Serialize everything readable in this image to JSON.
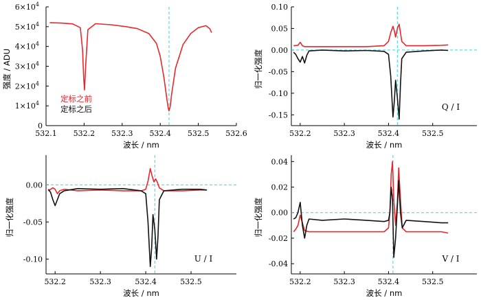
{
  "colors": {
    "before": "#e8262b",
    "after": "#111111",
    "guide": "#33d6e6"
  },
  "chart_data": [
    {
      "type": "line",
      "xlabel": "波长 / nm",
      "ylabel": "强度 / ADU",
      "xlim": [
        532.1,
        532.6
      ],
      "ylim": [
        0,
        60000
      ],
      "xticks": [
        {
          "v": 532.1,
          "label": "532.1"
        },
        {
          "v": 532.2,
          "label": "532.2"
        },
        {
          "v": 532.3,
          "label": "532.3"
        },
        {
          "v": 532.4,
          "label": "532.4"
        },
        {
          "v": 532.5,
          "label": "532.5"
        },
        {
          "v": 532.6,
          "label": "532.6"
        }
      ],
      "yticks": [
        {
          "v": 0,
          "m": "0",
          "e": ""
        },
        {
          "v": 10000,
          "m": "1×10",
          "e": "4"
        },
        {
          "v": 20000,
          "m": "2×10",
          "e": "4"
        },
        {
          "v": 30000,
          "m": "3×10",
          "e": "4"
        },
        {
          "v": 40000,
          "m": "4×10",
          "e": "4"
        },
        {
          "v": 50000,
          "m": "5×10",
          "e": "4"
        },
        {
          "v": 60000,
          "m": "6×10",
          "e": "4"
        }
      ],
      "legend": [
        "定标之前",
        "定标之后"
      ],
      "vline": 532.423,
      "series": [
        {
          "x": [
            532.11,
            532.14,
            532.17,
            532.19,
            532.196,
            532.199,
            532.201,
            532.204,
            532.21,
            532.23,
            532.27,
            532.31,
            532.34,
            532.37,
            532.39,
            532.4,
            532.41,
            532.417,
            532.421,
            532.423,
            532.426,
            532.43,
            532.44,
            532.46,
            532.48,
            532.5,
            532.52,
            532.53,
            532.535
          ],
          "y": [
            52000,
            51800,
            51400,
            49500,
            38000,
            24000,
            18000,
            30000,
            48500,
            51500,
            51000,
            50000,
            49000,
            46500,
            41500,
            35000,
            24000,
            14000,
            9000,
            7500,
            9500,
            16000,
            29000,
            41000,
            46500,
            49500,
            50500,
            49000,
            47000
          ]
        }
      ]
    },
    {
      "type": "line",
      "xlabel": "波长 / nm",
      "ylabel": "归一化强度",
      "annotation": "Q / I",
      "xlim": [
        532.18,
        532.6
      ],
      "ylim": [
        -0.175,
        0.1
      ],
      "xticks": [
        {
          "v": 532.2,
          "label": "532.2"
        },
        {
          "v": 532.3,
          "label": "532.3"
        },
        {
          "v": 532.4,
          "label": "532.4"
        },
        {
          "v": 532.5,
          "label": "532.5"
        }
      ],
      "yticks": [
        {
          "v": 0.1,
          "label": "0.10"
        },
        {
          "v": 0.05,
          "label": "0.05"
        },
        {
          "v": 0.0,
          "label": "0.00"
        },
        {
          "v": -0.05,
          "label": "-0.05"
        },
        {
          "v": -0.1,
          "label": "-0.10"
        },
        {
          "v": -0.15,
          "label": "-0.15"
        }
      ],
      "hline": 0,
      "vline": 532.42,
      "series": [
        {
          "x": [
            532.185,
            532.195,
            532.2,
            532.205,
            532.21,
            532.22,
            532.25,
            532.3,
            532.35,
            532.39,
            532.4,
            532.405,
            532.41,
            532.413,
            532.416,
            532.42,
            532.424,
            532.427,
            532.43,
            532.44,
            532.48,
            532.52,
            532.535
          ],
          "y": [
            0.01,
            0.011,
            0.018,
            0.01,
            0.008,
            0.008,
            0.008,
            0.008,
            0.008,
            0.01,
            0.02,
            0.04,
            0.055,
            0.045,
            0.03,
            0.05,
            0.06,
            0.04,
            0.02,
            0.01,
            0.01,
            0.011,
            0.012
          ]
        },
        {
          "x": [
            532.185,
            532.19,
            532.195,
            532.2,
            532.205,
            532.21,
            532.215,
            532.22,
            532.25,
            532.3,
            532.35,
            532.39,
            532.4,
            532.405,
            532.41,
            532.413,
            532.416,
            532.42,
            532.424,
            532.427,
            532.43,
            532.44,
            532.48,
            532.52,
            532.535
          ],
          "y": [
            -0.005,
            -0.01,
            -0.02,
            -0.028,
            -0.015,
            -0.03,
            -0.012,
            -0.002,
            0.0,
            -0.002,
            -0.001,
            -0.003,
            -0.01,
            -0.06,
            -0.155,
            -0.12,
            -0.07,
            -0.11,
            -0.16,
            -0.08,
            -0.02,
            -0.005,
            -0.002,
            0.0,
            -0.001
          ]
        }
      ]
    },
    {
      "type": "line",
      "xlabel": "波长 / nm",
      "ylabel": "归一化强度",
      "annotation": "U / I",
      "xlim": [
        532.18,
        532.6
      ],
      "ylim": [
        -0.12,
        0.04
      ],
      "xticks": [
        {
          "v": 532.2,
          "label": "532.2"
        },
        {
          "v": 532.3,
          "label": "532.3"
        },
        {
          "v": 532.4,
          "label": "532.4"
        },
        {
          "v": 532.5,
          "label": "532.5"
        }
      ],
      "yticks": [
        {
          "v": 0.0,
          "label": "0.00"
        },
        {
          "v": -0.05,
          "label": "-0.05"
        },
        {
          "v": -0.1,
          "label": "-0.10"
        }
      ],
      "hline": 0,
      "vline": 532.42,
      "series": [
        {
          "x": [
            532.185,
            532.195,
            532.2,
            532.205,
            532.21,
            532.22,
            532.25,
            532.3,
            532.35,
            532.39,
            532.4,
            532.405,
            532.41,
            532.414,
            532.418,
            532.422,
            532.426,
            532.43,
            532.44,
            532.48,
            532.52,
            532.535
          ],
          "y": [
            -0.008,
            -0.004,
            -0.006,
            -0.012,
            -0.008,
            -0.006,
            -0.008,
            -0.007,
            -0.008,
            -0.008,
            -0.006,
            0.005,
            0.022,
            0.012,
            0.004,
            0.008,
            0.003,
            -0.004,
            -0.008,
            -0.008,
            -0.007,
            -0.007
          ]
        },
        {
          "x": [
            532.185,
            532.19,
            532.195,
            532.2,
            532.205,
            532.21,
            532.22,
            532.25,
            532.3,
            532.35,
            532.39,
            532.4,
            532.405,
            532.41,
            532.413,
            532.416,
            532.42,
            532.424,
            532.427,
            532.43,
            532.44,
            532.48,
            532.52,
            532.535
          ],
          "y": [
            -0.006,
            -0.01,
            -0.02,
            -0.028,
            -0.02,
            -0.012,
            -0.008,
            -0.005,
            -0.006,
            -0.005,
            -0.008,
            -0.012,
            -0.05,
            -0.11,
            -0.085,
            -0.04,
            -0.06,
            -0.1,
            -0.07,
            -0.02,
            -0.008,
            -0.006,
            -0.006,
            -0.007
          ]
        }
      ]
    },
    {
      "type": "line",
      "xlabel": "波长 / nm",
      "ylabel": "归一化强度",
      "annotation": "V / I",
      "xlim": [
        532.18,
        532.6
      ],
      "ylim": [
        -0.048,
        0.045
      ],
      "xticks": [
        {
          "v": 532.2,
          "label": "532.2"
        },
        {
          "v": 532.3,
          "label": "532.3"
        },
        {
          "v": 532.4,
          "label": "532.4"
        },
        {
          "v": 532.5,
          "label": "532.5"
        }
      ],
      "yticks": [
        {
          "v": 0.04,
          "label": "0.04"
        },
        {
          "v": 0.02,
          "label": "0.02"
        },
        {
          "v": 0.0,
          "label": "0.00"
        },
        {
          "v": -0.02,
          "label": "-0.02"
        },
        {
          "v": -0.04,
          "label": "-0.04"
        }
      ],
      "hline": 0,
      "vline": 532.41,
      "series": [
        {
          "x": [
            532.185,
            532.19,
            532.195,
            532.2,
            532.205,
            532.21,
            532.22,
            532.25,
            532.3,
            532.35,
            532.39,
            532.4,
            532.403,
            532.406,
            532.409,
            532.412,
            532.416,
            532.42,
            532.423,
            532.427,
            532.431,
            532.44,
            532.48,
            532.52,
            532.535
          ],
          "y": [
            -0.015,
            -0.013,
            -0.01,
            -0.002,
            -0.008,
            -0.014,
            -0.015,
            -0.015,
            -0.015,
            -0.015,
            -0.015,
            -0.012,
            0.0,
            0.03,
            0.04,
            0.01,
            -0.01,
            0.008,
            0.035,
            0.01,
            -0.012,
            -0.015,
            -0.015,
            -0.015,
            -0.016
          ]
        },
        {
          "x": [
            532.185,
            532.19,
            532.195,
            532.2,
            532.205,
            532.21,
            532.215,
            532.22,
            532.25,
            532.3,
            532.35,
            532.39,
            532.4,
            532.403,
            532.406,
            532.409,
            532.412,
            532.416,
            532.42,
            532.423,
            532.427,
            532.431,
            532.44,
            532.48,
            532.52,
            532.535
          ],
          "y": [
            -0.005,
            -0.004,
            0.0,
            0.008,
            -0.01,
            -0.02,
            -0.01,
            -0.005,
            -0.006,
            -0.005,
            -0.006,
            -0.007,
            -0.006,
            0.0,
            0.02,
            0.01,
            -0.035,
            -0.02,
            0.005,
            0.025,
            0.0,
            -0.012,
            -0.006,
            -0.007,
            -0.008,
            -0.008
          ]
        }
      ]
    }
  ]
}
